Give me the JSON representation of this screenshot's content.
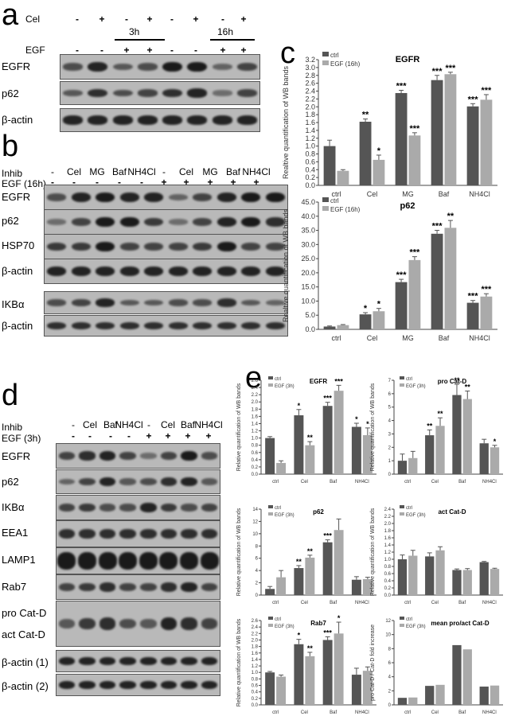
{
  "panel_a": {
    "letter": "a",
    "cel_label": "Cel",
    "egf_label": "EGF",
    "cel_signs": [
      "-",
      "+",
      "-",
      "+",
      "-",
      "+",
      "-",
      "+"
    ],
    "egf_signs": [
      "-",
      "-",
      "+",
      "+",
      "-",
      "-",
      "+",
      "+"
    ],
    "time_groups": [
      "3h",
      "16h"
    ],
    "rows": [
      "EGFR",
      "p62",
      "β-actin"
    ]
  },
  "panel_b": {
    "letter": "b",
    "inhib_label": "Inhib",
    "egf_label": "EGF  (16h)",
    "inhib_values": [
      "-",
      "Cel",
      "MG",
      "Baf",
      "NH4Cl",
      "-",
      "Cel",
      "MG",
      "Baf",
      "NH4Cl"
    ],
    "egf_signs": [
      "-",
      "-",
      "-",
      "-",
      "-",
      "+",
      "+",
      "+",
      "+",
      "+"
    ],
    "rows": [
      "EGFR",
      "p62",
      "HSP70",
      "β-actin",
      "IKBα",
      "β-actin"
    ]
  },
  "panel_d": {
    "letter": "d",
    "inhib_label": "Inhib",
    "egf_label": "EGF  (3h)",
    "inhib_values": [
      "-",
      "Cel",
      "Baf",
      "NH4Cl",
      "-",
      "Cel",
      "Baf",
      "NH4Cl"
    ],
    "egf_signs": [
      "-",
      "-",
      "-",
      "-",
      "+",
      "+",
      "+",
      "+"
    ],
    "rows": [
      "EGFR",
      "p62",
      "IKBα",
      "EEA1",
      "LAMP1",
      "Rab7",
      "pro Cat-D",
      "act Cat-D",
      "β-actin (1)",
      "β-actin (2)"
    ]
  },
  "panel_c_letter": "c",
  "panel_e_letter": "e",
  "colors": {
    "ctrl": "#555555",
    "egf": "#aaaaaa"
  },
  "chart_data": [
    {
      "id": "c-egfr",
      "type": "bar",
      "title": "EGFR",
      "ylabel": "Realtive quantification of WB bands",
      "categories": [
        "ctrl",
        "Cel",
        "MG",
        "Baf",
        "NH4Cl"
      ],
      "series": [
        {
          "name": "ctrl",
          "values": [
            1.0,
            1.62,
            2.35,
            2.68,
            2.01
          ],
          "errors": [
            0.15,
            0.07,
            0.07,
            0.12,
            0.07
          ]
        },
        {
          "name": "EGF (16h)",
          "values": [
            0.37,
            0.65,
            1.27,
            2.83,
            2.18
          ],
          "errors": [
            0.03,
            0.12,
            0.07,
            0.05,
            0.13
          ]
        }
      ],
      "sig_ctrl": [
        "",
        "**",
        "***",
        "***",
        "***"
      ],
      "sig_egf": [
        "",
        "*",
        "***",
        "***",
        "***"
      ],
      "ylim": [
        0,
        3.2
      ],
      "yticks": [
        "0.0",
        "0.2",
        "0.4",
        "0.6",
        "0.8",
        "1.0",
        "1.2",
        "1.4",
        "1.6",
        "1.8",
        "2.0",
        "2.2",
        "2.4",
        "2.6",
        "2.8",
        "3.0",
        "3.2"
      ],
      "tick_step": 0.2
    },
    {
      "id": "c-p62",
      "type": "bar",
      "title": "p62",
      "ylabel": "Realtive quantification of WB bands",
      "categories": [
        "ctrl",
        "Cel",
        "MG",
        "Baf",
        "NH4Cl"
      ],
      "series": [
        {
          "name": "ctrl",
          "values": [
            1.0,
            5.3,
            16.7,
            33.8,
            9.4
          ],
          "errors": [
            0.2,
            0.6,
            1.0,
            1.2,
            0.8
          ]
        },
        {
          "name": "EGF (16h)",
          "values": [
            1.5,
            6.4,
            24.5,
            35.9,
            11.6
          ],
          "errors": [
            0.2,
            1.0,
            1.2,
            2.6,
            1.0
          ]
        }
      ],
      "sig_ctrl": [
        "",
        "*",
        "***",
        "***",
        "***"
      ],
      "sig_egf": [
        "",
        "*",
        "***",
        "**",
        "***"
      ],
      "ylim": [
        0,
        45
      ],
      "yticks": [
        "0.0",
        "5.0",
        "10.0",
        "15.0",
        "20.0",
        "25.0",
        "30.0",
        "35.0",
        "40.0",
        "45.0"
      ],
      "tick_step": 5
    },
    {
      "id": "e-egfr",
      "type": "bar",
      "title": "EGFR",
      "ylabel": "Relative quantification of WB bands",
      "categories": [
        "ctrl",
        "Cel",
        "Baf",
        "NH4Cl"
      ],
      "series": [
        {
          "name": "ctrl",
          "values": [
            1.0,
            1.63,
            1.89,
            1.31
          ],
          "errors": [
            0.04,
            0.16,
            0.1,
            0.1
          ]
        },
        {
          "name": "EGF (3h)",
          "values": [
            0.31,
            0.8,
            2.31,
            1.08
          ],
          "errors": [
            0.06,
            0.1,
            0.15,
            0.2
          ]
        }
      ],
      "sig_ctrl": [
        "",
        "*",
        "***",
        "*"
      ],
      "sig_egf": [
        "",
        "**",
        "***",
        "*"
      ],
      "ylim": [
        0,
        2.6
      ],
      "yticks": [
        "0.0",
        "0.2",
        "0.4",
        "0.6",
        "0.8",
        "1.0",
        "1.2",
        "1.4",
        "1.6",
        "1.8",
        "2.0",
        "2.2",
        "2.4",
        "2.6"
      ],
      "tick_step": 0.2
    },
    {
      "id": "e-procatd",
      "type": "bar",
      "title": "pro Cat-D",
      "ylabel": "Relative quantification of WB bands",
      "categories": [
        "ctrl",
        "Cel",
        "Baf",
        "NH4Cl"
      ],
      "series": [
        {
          "name": "ctrl",
          "values": [
            1.0,
            2.9,
            5.9,
            2.3
          ],
          "errors": [
            0.5,
            0.4,
            0.8,
            0.3
          ]
        },
        {
          "name": "EGF (3h)",
          "values": [
            1.2,
            3.6,
            5.6,
            2.0
          ],
          "errors": [
            0.5,
            0.6,
            0.6,
            0.15
          ]
        }
      ],
      "sig_ctrl": [
        "",
        "**",
        "**",
        ""
      ],
      "sig_egf": [
        "",
        "**",
        "**",
        "*"
      ],
      "ylim": [
        0,
        7
      ],
      "yticks": [
        "0",
        "1",
        "2",
        "3",
        "4",
        "5",
        "6",
        "7"
      ],
      "tick_step": 1
    },
    {
      "id": "e-p62",
      "type": "bar",
      "title": "p62",
      "ylabel": "Relative quantification of WB bands",
      "categories": [
        "ctrl",
        "Cel",
        "Baf",
        "NH4Cl"
      ],
      "series": [
        {
          "name": "ctrl",
          "values": [
            1.0,
            4.4,
            8.6,
            2.5
          ],
          "errors": [
            0.4,
            0.4,
            0.4,
            0.5
          ]
        },
        {
          "name": "EGF (3h)",
          "values": [
            2.9,
            6.1,
            10.6,
            2.6
          ],
          "errors": [
            1.1,
            0.4,
            1.8,
            0.3
          ]
        }
      ],
      "sig_ctrl": [
        "",
        "**",
        "***",
        ""
      ],
      "sig_egf": [
        "",
        "**",
        "",
        ""
      ],
      "ylim": [
        0,
        14
      ],
      "yticks": [
        "0",
        "2",
        "4",
        "6",
        "8",
        "10",
        "12",
        "14"
      ],
      "tick_step": 2
    },
    {
      "id": "e-actcatd",
      "type": "bar",
      "title": "act Cat-D",
      "ylabel": "Relative quantification of WB bands",
      "categories": [
        "ctrl",
        "Cel",
        "Baf",
        "NH4Cl"
      ],
      "series": [
        {
          "name": "ctrl",
          "values": [
            1.0,
            1.08,
            0.7,
            0.92
          ],
          "errors": [
            0.12,
            0.1,
            0.03,
            0.02
          ]
        },
        {
          "name": "EGF (3h)",
          "values": [
            1.1,
            1.25,
            0.7,
            0.73
          ],
          "errors": [
            0.15,
            0.1,
            0.04,
            0.02
          ]
        }
      ],
      "sig_ctrl": [
        "",
        "",
        "",
        ""
      ],
      "sig_egf": [
        "",
        "",
        "",
        ""
      ],
      "ylim": [
        0,
        2.4
      ],
      "yticks": [
        "0.0",
        "0.2",
        "0.4",
        "0.6",
        "0.8",
        "1.0",
        "1.2",
        "1.4",
        "1.6",
        "1.8",
        "2.0",
        "2.2",
        "2.4"
      ],
      "tick_step": 0.2
    },
    {
      "id": "e-rab7",
      "type": "bar",
      "title": "Rab7",
      "ylabel": "Relative quantification of WB bands",
      "categories": [
        "ctrl",
        "Cel",
        "Baf",
        "NH4Cl"
      ],
      "series": [
        {
          "name": "ctrl",
          "values": [
            1.0,
            1.87,
            2.0,
            0.93
          ],
          "errors": [
            0.03,
            0.15,
            0.1,
            0.2
          ]
        },
        {
          "name": "EGF (3h)",
          "values": [
            0.87,
            1.5,
            2.2,
            1.05
          ],
          "errors": [
            0.05,
            0.12,
            0.35,
            0.12
          ]
        }
      ],
      "sig_ctrl": [
        "",
        "*",
        "***",
        ""
      ],
      "sig_egf": [
        "",
        "**",
        "*",
        ""
      ],
      "ylim": [
        0,
        2.6
      ],
      "yticks": [
        "0.0",
        "0.2",
        "0.4",
        "0.6",
        "0.8",
        "1.0",
        "1.2",
        "1.4",
        "1.6",
        "1.8",
        "2.0",
        "2.2",
        "2.4",
        "2.6"
      ],
      "tick_step": 0.2
    },
    {
      "id": "e-ratio",
      "type": "bar",
      "title": "mean pro/act Cat-D",
      "ylabel": "pro Cat-D / Cat-D fold increase",
      "categories": [
        "ctrl",
        "Cel",
        "Baf",
        "NH4Cl"
      ],
      "series": [
        {
          "name": "ctrl",
          "values": [
            1.0,
            2.7,
            8.5,
            2.6
          ],
          "errors": [
            0,
            0,
            0,
            0
          ]
        },
        {
          "name": "EGF (3h)",
          "values": [
            1.05,
            2.85,
            7.9,
            2.75
          ],
          "errors": [
            0,
            0,
            0,
            0
          ]
        }
      ],
      "sig_ctrl": [
        "",
        "",
        "",
        ""
      ],
      "sig_egf": [
        "",
        "",
        "",
        ""
      ],
      "ylim": [
        0,
        12
      ],
      "yticks": [
        "0",
        "2",
        "4",
        "6",
        "8",
        "10",
        "12"
      ],
      "tick_step": 2
    }
  ]
}
